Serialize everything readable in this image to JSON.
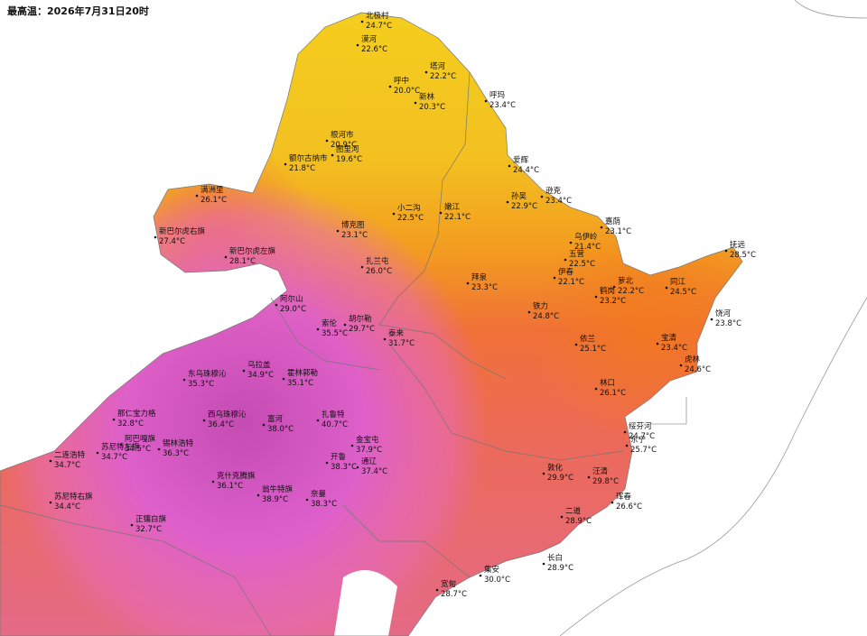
{
  "title": "最高温：2026年7月31日20时",
  "stations": [
    {
      "name": "北极村",
      "temp": "24.7°C"
    },
    {
      "name": "漠河",
      "temp": "22.6°C"
    },
    {
      "name": "塔河",
      "temp": "22.2°C"
    },
    {
      "name": "呼中",
      "temp": "20.0°C"
    },
    {
      "name": "新林",
      "temp": "20.3°C"
    },
    {
      "name": "呼玛",
      "temp": "23.4°C"
    },
    {
      "name": "根河市",
      "temp": "20.9°C"
    },
    {
      "name": "图里河",
      "temp": "19.6°C"
    },
    {
      "name": "额尔古纳市",
      "temp": "21.8°C"
    },
    {
      "name": "爱辉",
      "temp": "24.4°C"
    },
    {
      "name": "孙吴",
      "temp": "22.9°C"
    },
    {
      "name": "逊克",
      "temp": "23.4°C"
    },
    {
      "name": "满洲里",
      "temp": "26.1°C"
    },
    {
      "name": "博克图",
      "temp": "23.1°C"
    },
    {
      "name": "小二沟",
      "temp": "22.5°C"
    },
    {
      "name": "嫩江",
      "temp": "22.1°C"
    },
    {
      "name": "嘉荫",
      "temp": "23.1°C"
    },
    {
      "name": "乌伊岭",
      "temp": "21.4°C"
    },
    {
      "name": "新巴尔虎右旗",
      "temp": "27.4°C"
    },
    {
      "name": "新巴尔虎左旗",
      "temp": "28.1°C"
    },
    {
      "name": "五营",
      "temp": "22.5°C"
    },
    {
      "name": "抚远",
      "temp": "28.5°C"
    },
    {
      "name": "伊春",
      "temp": "22.1°C"
    },
    {
      "name": "扎兰屯",
      "temp": "26.0°C"
    },
    {
      "name": "拜泉",
      "temp": "23.3°C"
    },
    {
      "name": "阿尔山",
      "temp": "29.0°C"
    },
    {
      "name": "同江",
      "temp": "24.5°C"
    },
    {
      "name": "萝北",
      "temp": "22.2°C"
    },
    {
      "name": "鹤岗",
      "temp": "23.2°C"
    },
    {
      "name": "饶河",
      "temp": "23.8°C"
    },
    {
      "name": "铁力",
      "temp": "24.8°C"
    },
    {
      "name": "宝清",
      "temp": "23.4°C"
    },
    {
      "name": "依兰",
      "temp": "25.1°C"
    },
    {
      "name": "索伦",
      "temp": "35.5°C"
    },
    {
      "name": "胡尔勒",
      "temp": "29.7°C"
    },
    {
      "name": "泰来",
      "temp": "31.7°C"
    },
    {
      "name": "虎林",
      "temp": "24.6°C"
    },
    {
      "name": "乌拉盖",
      "temp": "34.9°C"
    },
    {
      "name": "东乌珠穆沁",
      "temp": "35.3°C"
    },
    {
      "name": "霍林郭勒",
      "temp": "35.1°C"
    },
    {
      "name": "林口",
      "temp": "26.1°C"
    },
    {
      "name": "那仁宝力格",
      "temp": "32.8°C"
    },
    {
      "name": "西乌珠穆沁",
      "temp": "36.4°C"
    },
    {
      "name": "扎鲁特",
      "temp": "40.7°C"
    },
    {
      "name": "绥芬河",
      "temp": "24.7°C"
    },
    {
      "name": "东宁",
      "temp": "25.7°C"
    },
    {
      "name": "阿巴嘎旗",
      "temp": "34.5°C"
    },
    {
      "name": "锡林浩特",
      "temp": "36.3°C"
    },
    {
      "name": "富河",
      "temp": "38.0°C"
    },
    {
      "name": "金宝屯",
      "temp": "37.9°C"
    },
    {
      "name": "二连浩特",
      "temp": "34.7°C"
    },
    {
      "name": "苏尼特左旗",
      "temp": "34.7°C"
    },
    {
      "name": "开鲁",
      "temp": "38.3°C"
    },
    {
      "name": "通辽",
      "temp": "37.4°C"
    },
    {
      "name": "克什克腾旗",
      "temp": "36.1°C"
    },
    {
      "name": "汪清",
      "temp": "29.8°C"
    },
    {
      "name": "敦化",
      "temp": "29.9°C"
    },
    {
      "name": "翁牛特旗",
      "temp": "38.9°C"
    },
    {
      "name": "奈曼",
      "temp": "38.3°C"
    },
    {
      "name": "苏尼特右旗",
      "temp": "34.4°C"
    },
    {
      "name": "珲春",
      "temp": "26.6°C"
    },
    {
      "name": "正镶白旗",
      "temp": "32.7°C"
    },
    {
      "name": "二道",
      "temp": "28.9°C"
    },
    {
      "name": "长白",
      "temp": "28.9°C"
    },
    {
      "name": "集安",
      "temp": "30.0°C"
    },
    {
      "name": "宽甸",
      "temp": "28.7°C"
    }
  ]
}
